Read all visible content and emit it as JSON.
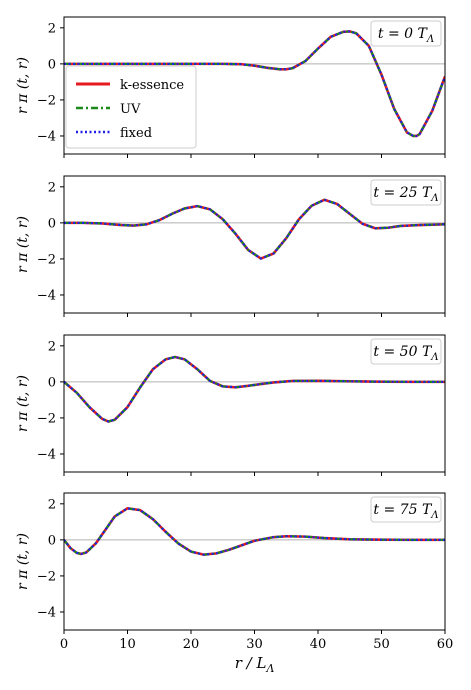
{
  "chart_data": [
    {
      "type": "line",
      "time_label": "t = 0 T_Λ",
      "ylabel": "r π (t, r)",
      "xlabel": "",
      "xlim": [
        0,
        60
      ],
      "ylim": [
        -5,
        2.6
      ],
      "xticks": [
        "0",
        "10",
        "20",
        "30",
        "40",
        "50",
        "60"
      ],
      "yticks": [
        "2",
        "0",
        "−2",
        "−4"
      ],
      "legend": [
        "k-essence",
        "UV",
        "fixed"
      ],
      "series": [
        {
          "name": "k-essence",
          "x": [
            0,
            10,
            20,
            25,
            28,
            30,
            32,
            34,
            35,
            36,
            38,
            40,
            42,
            44,
            45,
            46,
            48,
            50,
            52,
            54,
            55,
            55.5,
            56,
            58,
            60
          ],
          "y": [
            0,
            0,
            0,
            0,
            -0.02,
            -0.1,
            -0.22,
            -0.3,
            -0.3,
            -0.24,
            0.15,
            0.85,
            1.5,
            1.78,
            1.8,
            1.7,
            1.0,
            -0.6,
            -2.5,
            -3.8,
            -4.0,
            -4.0,
            -3.9,
            -2.6,
            -0.7
          ]
        },
        {
          "name": "UV",
          "x": [
            0,
            10,
            20,
            25,
            28,
            30,
            32,
            34,
            35,
            36,
            38,
            40,
            42,
            44,
            45,
            46,
            48,
            50,
            52,
            54,
            55,
            55.5,
            56,
            58,
            60
          ],
          "y": [
            0,
            0,
            0,
            0,
            -0.02,
            -0.1,
            -0.22,
            -0.3,
            -0.3,
            -0.24,
            0.15,
            0.85,
            1.5,
            1.78,
            1.8,
            1.7,
            1.0,
            -0.6,
            -2.5,
            -3.8,
            -4.0,
            -4.0,
            -3.9,
            -2.6,
            -0.7
          ]
        },
        {
          "name": "fixed",
          "x": [
            0,
            10,
            20,
            25,
            28,
            30,
            32,
            34,
            35,
            36,
            38,
            40,
            42,
            44,
            45,
            46,
            48,
            50,
            52,
            54,
            55,
            55.5,
            56,
            58,
            60
          ],
          "y": [
            0,
            0,
            0,
            0,
            -0.02,
            -0.1,
            -0.22,
            -0.3,
            -0.3,
            -0.24,
            0.15,
            0.85,
            1.5,
            1.78,
            1.8,
            1.7,
            1.0,
            -0.6,
            -2.5,
            -3.8,
            -4.0,
            -4.0,
            -3.9,
            -2.6,
            -0.7
          ]
        }
      ]
    },
    {
      "type": "line",
      "time_label": "t = 25 T_Λ",
      "ylabel": "r π (t, r)",
      "xlabel": "",
      "xlim": [
        0,
        60
      ],
      "ylim": [
        -5,
        2.6
      ],
      "xticks": [
        "0",
        "10",
        "20",
        "30",
        "40",
        "50",
        "60"
      ],
      "yticks": [
        "2",
        "0",
        "−2",
        "−4"
      ],
      "series": [
        {
          "name": "k-essence",
          "x": [
            0,
            3,
            6,
            9,
            11,
            13,
            15,
            17,
            19,
            21,
            23,
            25,
            27,
            29,
            31,
            33,
            35,
            37,
            39,
            41,
            43,
            45,
            47,
            49,
            51,
            53,
            56,
            60
          ],
          "y": [
            0,
            0,
            -0.03,
            -0.12,
            -0.15,
            -0.08,
            0.15,
            0.5,
            0.8,
            0.93,
            0.75,
            0.2,
            -0.6,
            -1.5,
            -1.98,
            -1.7,
            -0.85,
            0.2,
            0.95,
            1.28,
            1.05,
            0.5,
            -0.05,
            -0.3,
            -0.27,
            -0.17,
            -0.12,
            -0.08
          ]
        },
        {
          "name": "UV",
          "x": [
            0,
            3,
            6,
            9,
            11,
            13,
            15,
            17,
            19,
            21,
            23,
            25,
            27,
            29,
            31,
            33,
            35,
            37,
            39,
            41,
            43,
            45,
            47,
            49,
            51,
            53,
            56,
            60
          ],
          "y": [
            0,
            0,
            -0.03,
            -0.12,
            -0.15,
            -0.08,
            0.15,
            0.5,
            0.8,
            0.93,
            0.75,
            0.2,
            -0.6,
            -1.5,
            -1.98,
            -1.7,
            -0.85,
            0.2,
            0.95,
            1.28,
            1.05,
            0.5,
            -0.05,
            -0.3,
            -0.27,
            -0.17,
            -0.12,
            -0.08
          ]
        },
        {
          "name": "fixed",
          "x": [
            0,
            3,
            6,
            9,
            11,
            13,
            15,
            17,
            19,
            21,
            23,
            25,
            27,
            29,
            31,
            33,
            35,
            37,
            39,
            41,
            43,
            45,
            47,
            49,
            51,
            53,
            56,
            60
          ],
          "y": [
            0,
            0,
            -0.03,
            -0.12,
            -0.15,
            -0.08,
            0.15,
            0.5,
            0.8,
            0.93,
            0.75,
            0.2,
            -0.6,
            -1.5,
            -1.98,
            -1.7,
            -0.85,
            0.2,
            0.95,
            1.28,
            1.05,
            0.5,
            -0.05,
            -0.3,
            -0.27,
            -0.17,
            -0.12,
            -0.08
          ]
        }
      ]
    },
    {
      "type": "line",
      "time_label": "t = 50 T_Λ",
      "ylabel": "r π (t, r)",
      "xlabel": "",
      "xlim": [
        0,
        60
      ],
      "ylim": [
        -5,
        2.6
      ],
      "xticks": [
        "0",
        "10",
        "20",
        "30",
        "40",
        "50",
        "60"
      ],
      "yticks": [
        "2",
        "0",
        "−2",
        "−4"
      ],
      "series": [
        {
          "name": "k-essence",
          "x": [
            0,
            2,
            4,
            6,
            7,
            8,
            10,
            12,
            14,
            16,
            17.5,
            19,
            21,
            23,
            25,
            27,
            29,
            31,
            33,
            36,
            40,
            45,
            50,
            55,
            60
          ],
          "y": [
            0,
            -0.6,
            -1.4,
            -2.05,
            -2.2,
            -2.1,
            -1.4,
            -0.3,
            0.7,
            1.25,
            1.38,
            1.25,
            0.7,
            0.05,
            -0.25,
            -0.3,
            -0.22,
            -0.12,
            -0.03,
            0.05,
            0.06,
            0.03,
            0.01,
            0,
            0
          ]
        },
        {
          "name": "UV",
          "x": [
            0,
            2,
            4,
            6,
            7,
            8,
            10,
            12,
            14,
            16,
            17.5,
            19,
            21,
            23,
            25,
            27,
            29,
            31,
            33,
            36,
            40,
            45,
            50,
            55,
            60
          ],
          "y": [
            0,
            -0.6,
            -1.4,
            -2.05,
            -2.2,
            -2.1,
            -1.4,
            -0.3,
            0.7,
            1.25,
            1.38,
            1.25,
            0.7,
            0.05,
            -0.25,
            -0.3,
            -0.22,
            -0.12,
            -0.03,
            0.05,
            0.06,
            0.03,
            0.01,
            0,
            0
          ]
        },
        {
          "name": "fixed",
          "x": [
            0,
            2,
            4,
            6,
            7,
            8,
            10,
            12,
            14,
            16,
            17.5,
            19,
            21,
            23,
            25,
            27,
            29,
            31,
            33,
            36,
            40,
            45,
            50,
            55,
            60
          ],
          "y": [
            0,
            -0.6,
            -1.4,
            -2.05,
            -2.2,
            -2.1,
            -1.4,
            -0.3,
            0.7,
            1.25,
            1.38,
            1.25,
            0.7,
            0.05,
            -0.25,
            -0.3,
            -0.22,
            -0.12,
            -0.03,
            0.05,
            0.06,
            0.03,
            0.01,
            0,
            0
          ]
        }
      ]
    },
    {
      "type": "line",
      "time_label": "t = 75 T_Λ",
      "ylabel": "r π (t, r)",
      "xlabel": "r / L_Λ",
      "xlim": [
        0,
        60
      ],
      "ylim": [
        -5,
        2.6
      ],
      "xticks": [
        "0",
        "10",
        "20",
        "30",
        "40",
        "50",
        "60"
      ],
      "yticks": [
        "2",
        "0",
        "−2",
        "−4"
      ],
      "series": [
        {
          "name": "k-essence",
          "x": [
            0,
            1,
            2,
            2.7,
            3.5,
            5,
            6.5,
            8,
            10,
            12,
            14,
            16,
            18,
            20,
            22,
            24,
            26,
            28,
            30,
            33,
            35,
            38,
            41,
            45,
            50,
            55,
            60
          ],
          "y": [
            0,
            -0.45,
            -0.72,
            -0.78,
            -0.7,
            -0.2,
            0.55,
            1.3,
            1.75,
            1.65,
            1.15,
            0.45,
            -0.2,
            -0.65,
            -0.82,
            -0.75,
            -0.55,
            -0.3,
            -0.05,
            0.15,
            0.2,
            0.18,
            0.1,
            0.03,
            0.01,
            0,
            0
          ]
        },
        {
          "name": "UV",
          "x": [
            0,
            1,
            2,
            2.7,
            3.5,
            5,
            6.5,
            8,
            10,
            12,
            14,
            16,
            18,
            20,
            22,
            24,
            26,
            28,
            30,
            33,
            35,
            38,
            41,
            45,
            50,
            55,
            60
          ],
          "y": [
            0,
            -0.45,
            -0.72,
            -0.78,
            -0.7,
            -0.2,
            0.55,
            1.3,
            1.75,
            1.65,
            1.15,
            0.45,
            -0.2,
            -0.65,
            -0.82,
            -0.75,
            -0.55,
            -0.3,
            -0.05,
            0.15,
            0.2,
            0.18,
            0.1,
            0.03,
            0.01,
            0,
            0
          ]
        },
        {
          "name": "fixed",
          "x": [
            0,
            1,
            2,
            2.7,
            3.5,
            5,
            6.5,
            8,
            10,
            12,
            14,
            16,
            18,
            20,
            22,
            24,
            26,
            28,
            30,
            33,
            35,
            38,
            41,
            45,
            50,
            55,
            60
          ],
          "y": [
            0,
            -0.45,
            -0.72,
            -0.78,
            -0.7,
            -0.2,
            0.55,
            1.3,
            1.75,
            1.65,
            1.15,
            0.45,
            -0.2,
            -0.65,
            -0.82,
            -0.75,
            -0.55,
            -0.3,
            -0.05,
            0.15,
            0.2,
            0.18,
            0.1,
            0.03,
            0.01,
            0,
            0
          ]
        }
      ]
    }
  ],
  "colors": {
    "k-essence": "#e41a1c",
    "UV": "#1a8a1a",
    "fixed": "#1f1fe8",
    "zero_line": "#b0b0b0",
    "box_border": "#cccccc"
  }
}
